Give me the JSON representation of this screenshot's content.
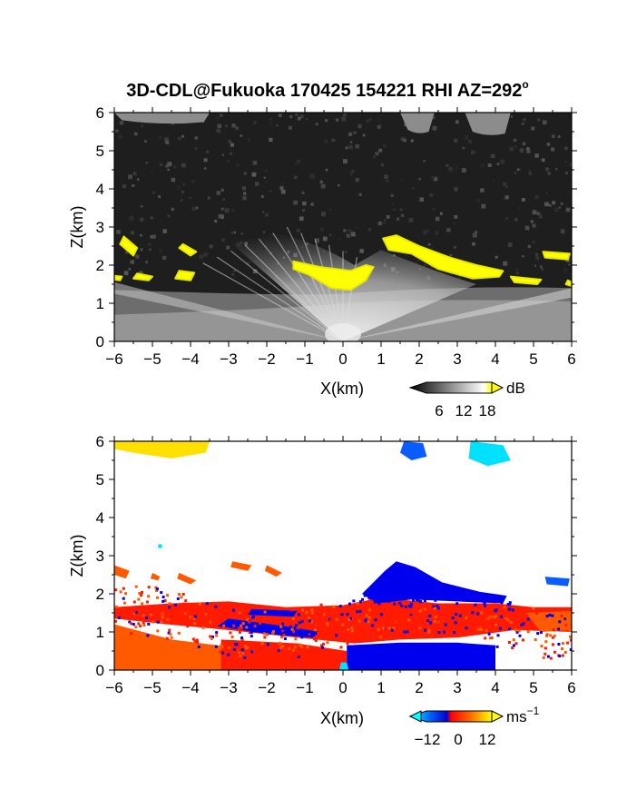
{
  "title": "3D-CDL@Fukuoka 170425 154221 RHI AZ=292",
  "title_degree": "o",
  "chart_data": [
    {
      "type": "heatmap",
      "panel": "reflectivity",
      "xlabel": "X(km)",
      "ylabel": "Z(km)",
      "xlim": [
        -6,
        6
      ],
      "ylim": [
        0,
        6
      ],
      "x_ticks": [
        "−6",
        "−5",
        "−4",
        "−3",
        "−2",
        "−1",
        "0",
        "1",
        "2",
        "3",
        "4",
        "5",
        "6"
      ],
      "y_ticks": [
        "0",
        "1",
        "2",
        "3",
        "4",
        "5",
        "6"
      ],
      "colorbar": {
        "unit": "dB",
        "ticks": [
          "6",
          "12",
          "18"
        ],
        "range": [
          0,
          20
        ]
      },
      "colors": {
        "background": "#1e1e1e",
        "strong": "#ffff00"
      },
      "features": [
        {
          "label": "high cloud echo",
          "x": [
            -6,
            -3.5
          ],
          "z": [
            5.7,
            6.0
          ]
        },
        {
          "label": "high cloud echo",
          "x": [
            1.5,
            2.5
          ],
          "z": [
            5.5,
            6.0
          ]
        },
        {
          "label": "high cloud echo",
          "x": [
            3.2,
            4.4
          ],
          "z": [
            5.4,
            6.0
          ]
        },
        {
          "label": "cloud base (strong, yellow)",
          "x": [
            -1.2,
            0.8
          ],
          "z": [
            1.4,
            2.1
          ]
        },
        {
          "label": "cloud base (strong, yellow)",
          "x": [
            1.0,
            4.3
          ],
          "z": [
            1.7,
            2.8
          ]
        },
        {
          "label": "cloud base (strong, yellow)",
          "x": [
            -6,
            -3.9
          ],
          "z": [
            1.5,
            2.7
          ]
        },
        {
          "label": "boundary layer aerosol",
          "x": [
            -6,
            6
          ],
          "z": [
            0,
            1.6
          ]
        }
      ]
    },
    {
      "type": "heatmap",
      "panel": "doppler_velocity",
      "xlabel": "X(km)",
      "ylabel": "Z(km)",
      "xlim": [
        -6,
        6
      ],
      "ylim": [
        0,
        6
      ],
      "x_ticks": [
        "−6",
        "−5",
        "−4",
        "−3",
        "−2",
        "−1",
        "0",
        "1",
        "2",
        "3",
        "4",
        "5",
        "6"
      ],
      "y_ticks": [
        "0",
        "1",
        "2",
        "3",
        "4",
        "5",
        "6"
      ],
      "colorbar": {
        "unit": "ms",
        "unit_exp": "−1",
        "ticks": [
          "−12",
          "0",
          "12"
        ],
        "range": [
          -15,
          15
        ]
      },
      "colors": {
        "negative": "#0000ff",
        "negative_weak": "#00e0ff",
        "zero": "#ff2a00",
        "positive": "#ffdd00"
      },
      "features": [
        {
          "label": "high cloud",
          "x": [
            -6,
            -3.5
          ],
          "z": [
            5.5,
            6.0
          ],
          "velocity": 12
        },
        {
          "label": "high cloud",
          "x": [
            1.5,
            2.2
          ],
          "z": [
            5.5,
            6.0
          ],
          "velocity": -11
        },
        {
          "label": "high cloud",
          "x": [
            3.3,
            4.4
          ],
          "z": [
            5.3,
            6.0
          ],
          "velocity": -13
        },
        {
          "label": "upper cloud layer",
          "x": [
            0.5,
            4.3
          ],
          "z": [
            1.6,
            2.8
          ],
          "velocity": -8
        },
        {
          "label": "lower cloud / boundary layer",
          "x": [
            -6,
            6
          ],
          "z": [
            0.3,
            1.8
          ],
          "velocity": 3
        },
        {
          "label": "low level outflow",
          "x": [
            0.2,
            4.0
          ],
          "z": [
            0,
            0.7
          ],
          "velocity": -9
        },
        {
          "label": "surface layer",
          "x": [
            -6,
            0
          ],
          "z": [
            0,
            0.6
          ],
          "velocity": 7
        }
      ]
    }
  ]
}
